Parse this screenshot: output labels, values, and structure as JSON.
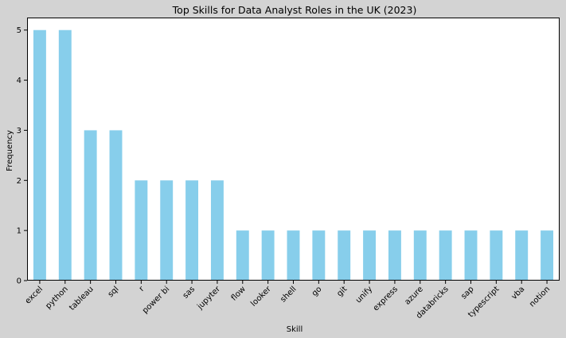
{
  "chart_data": {
    "type": "bar",
    "title": "Top Skills for Data Analyst Roles in the UK (2023)",
    "xlabel": "Skill",
    "ylabel": "Frequency",
    "categories": [
      "excel",
      "python",
      "tableau",
      "sql",
      "r",
      "power bi",
      "sas",
      "jupyter",
      "flow",
      "looker",
      "shell",
      "go",
      "git",
      "unify",
      "express",
      "azure",
      "databricks",
      "sap",
      "typescript",
      "vba",
      "notion"
    ],
    "values": [
      5,
      5,
      3,
      3,
      2,
      2,
      2,
      2,
      1,
      1,
      1,
      1,
      1,
      1,
      1,
      1,
      1,
      1,
      1,
      1,
      1
    ],
    "ylim": [
      0,
      5.25
    ],
    "yticks": [
      0,
      1,
      2,
      3,
      4,
      5
    ],
    "grid": false,
    "legend": "none",
    "bar_color": "#87ceeb",
    "background_color": "#d3d3d3",
    "plot_background_color": "#ffffff"
  }
}
